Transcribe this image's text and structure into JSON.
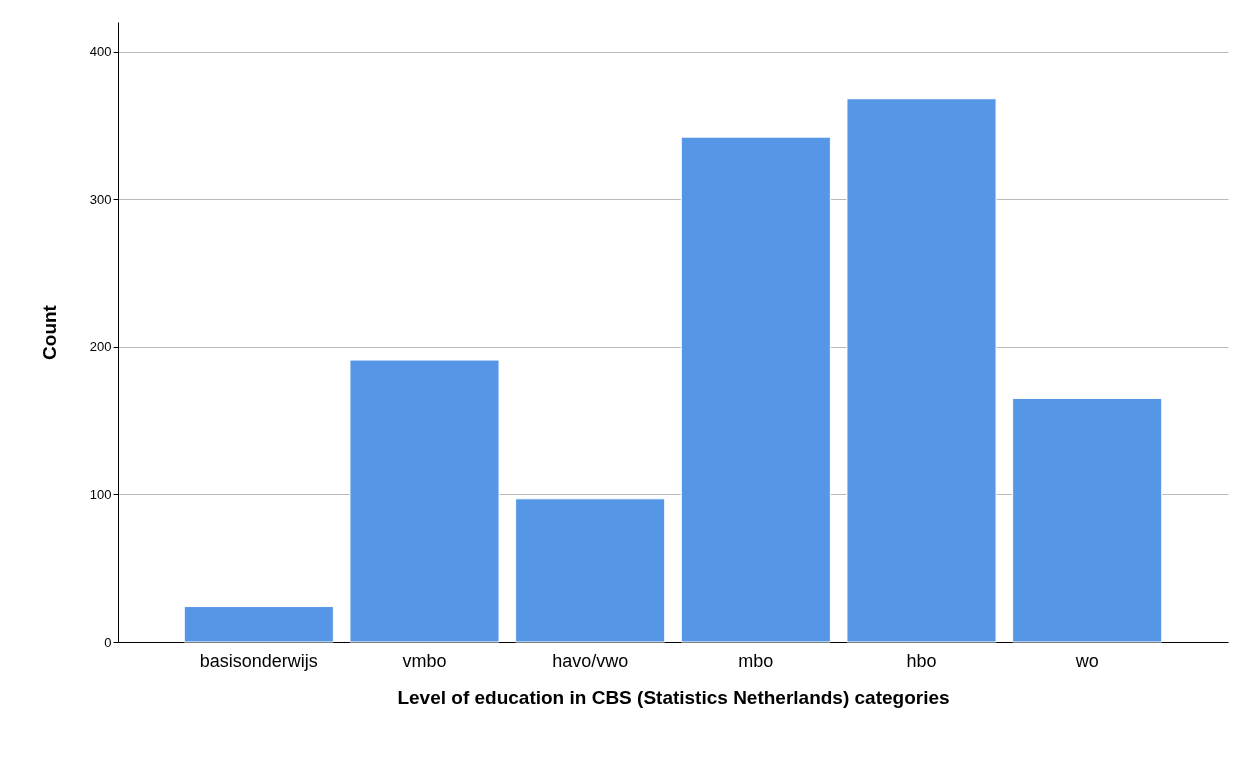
{
  "chart_data": {
    "type": "bar",
    "xlabel": "Level of education in CBS (Statistics Netherlands) categories",
    "ylabel": "Count",
    "categories": [
      "basisonderwijs",
      "vmbo",
      "havo/vwo",
      "mbo",
      "hbo",
      "wo"
    ],
    "values": [
      24,
      191,
      97,
      342,
      368,
      165
    ],
    "color": "#5596e6",
    "ylim": [
      0,
      420
    ],
    "yticks": [
      0,
      100,
      200,
      300,
      400
    ],
    "grid": "y"
  }
}
